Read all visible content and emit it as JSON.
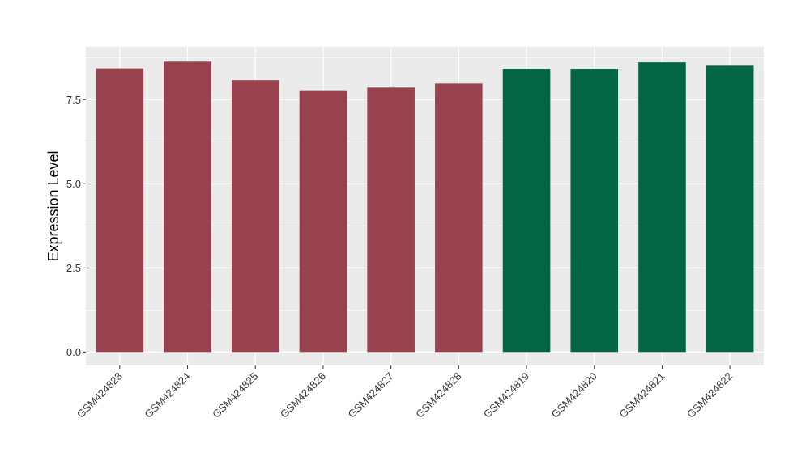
{
  "chart_data": {
    "type": "bar",
    "title": "",
    "xlabel": "",
    "ylabel": "Expression Level",
    "categories": [
      "GSM424823",
      "GSM424824",
      "GSM424825",
      "GSM424826",
      "GSM424827",
      "GSM424828",
      "GSM424819",
      "GSM424820",
      "GSM424821",
      "GSM424822"
    ],
    "values": [
      8.43,
      8.63,
      8.08,
      7.78,
      7.86,
      7.98,
      8.42,
      8.42,
      8.61,
      8.51
    ],
    "bar_colors": [
      "#98414f",
      "#98414f",
      "#98414f",
      "#98414f",
      "#98414f",
      "#98414f",
      "#026642",
      "#026642",
      "#026642",
      "#026642"
    ],
    "ylim": [
      -0.4,
      9.07
    ],
    "y_ticks": [
      0.0,
      2.5,
      5.0,
      7.5
    ],
    "y_tick_labels": [
      "0.0",
      "2.5",
      "5.0",
      "7.5"
    ],
    "grid": true,
    "panel_color": "#ebebeb",
    "grid_color": "#ffffff"
  }
}
